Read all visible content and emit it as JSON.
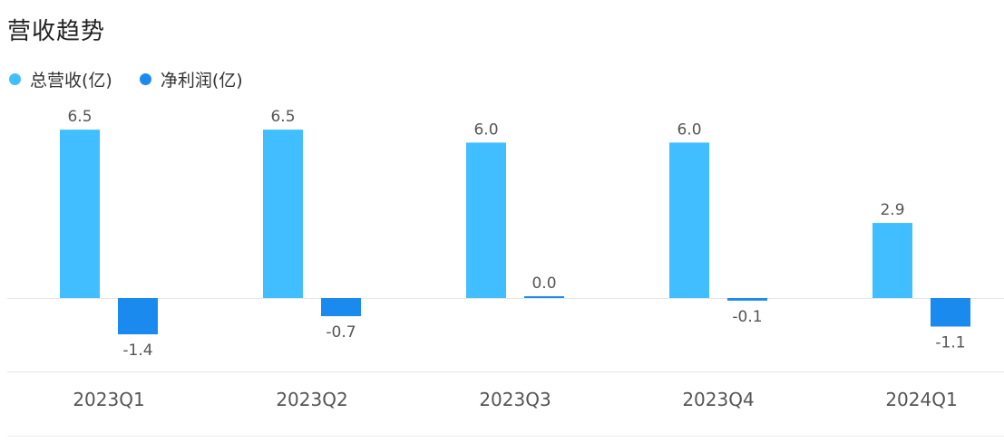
{
  "chart_data": {
    "type": "bar",
    "title": "营收趋势",
    "xlabel": "",
    "ylabel": "",
    "categories": [
      "2023Q1",
      "2023Q2",
      "2023Q3",
      "2023Q4",
      "2024Q1"
    ],
    "series": [
      {
        "name": "总营收(亿)",
        "color": "#41BEFF",
        "values": [
          6.5,
          6.5,
          6.0,
          6.0,
          2.9
        ],
        "labels": [
          "6.5",
          "6.5",
          "6.0",
          "6.0",
          "2.9"
        ]
      },
      {
        "name": "净利润(亿)",
        "color": "#1B8AEE",
        "values": [
          -1.4,
          -0.7,
          0.0,
          -0.1,
          -1.1
        ],
        "labels": [
          "-1.4",
          "-0.7",
          "0.0",
          "-0.1",
          "-1.1"
        ]
      }
    ],
    "legend": "top-left",
    "grid": false
  }
}
